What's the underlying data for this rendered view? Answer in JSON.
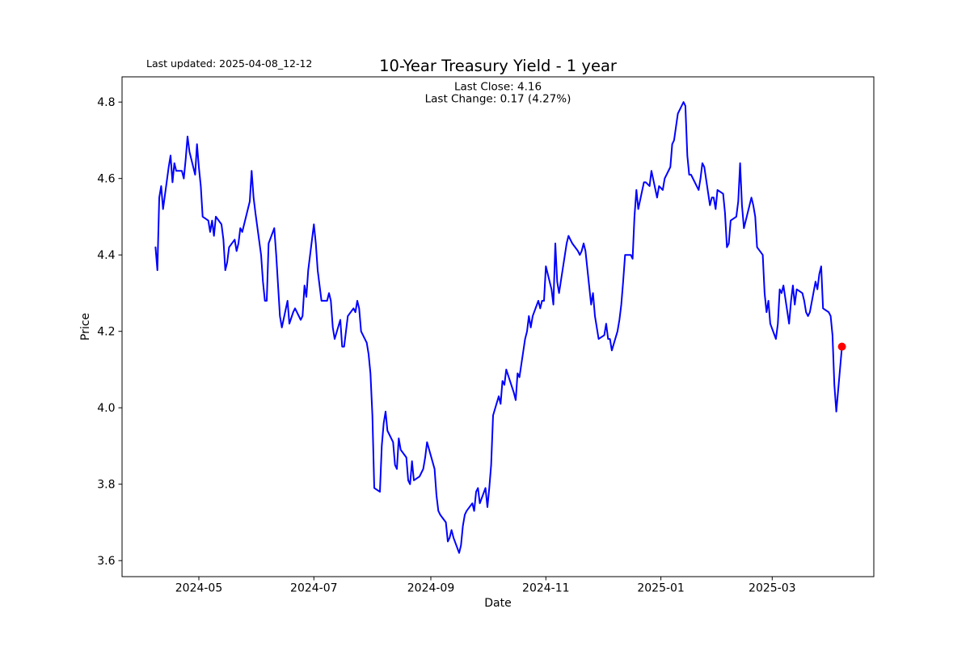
{
  "figure": {
    "last_updated": "Last updated: 2025-04-08_12-12"
  },
  "chart_data": {
    "type": "line",
    "title": "10-Year Treasury Yield - 1 year",
    "subtitle_lines": [
      "Last Close: 4.16",
      "Last Change: 0.17 (4.27%)"
    ],
    "xlabel": "Date",
    "ylabel": "Price",
    "legend": "none",
    "grid": false,
    "line_color": "#0000ff",
    "marker_color": "#ff0000",
    "last_close": 4.16,
    "last_change": 0.17,
    "last_change_pct": "4.27%",
    "x0": "2024-04-08",
    "x_range_days": [
      -17.73,
      380.9
    ],
    "y_range": [
      3.558,
      4.866
    ],
    "y_ticks": [
      3.6,
      3.8,
      4.0,
      4.2,
      4.4,
      4.6,
      4.8
    ],
    "x_ticks": [
      {
        "label": "2024-05",
        "date": "2024-05-01"
      },
      {
        "label": "2024-07",
        "date": "2024-07-01"
      },
      {
        "label": "2024-09",
        "date": "2024-09-01"
      },
      {
        "label": "2024-11",
        "date": "2024-11-01"
      },
      {
        "label": "2025-01",
        "date": "2025-01-01"
      },
      {
        "label": "2025-03",
        "date": "2025-03-01"
      }
    ],
    "dates": [
      "2024-04-08",
      "2024-04-09",
      "2024-04-10",
      "2024-04-11",
      "2024-04-12",
      "2024-04-15",
      "2024-04-16",
      "2024-04-17",
      "2024-04-18",
      "2024-04-19",
      "2024-04-22",
      "2024-04-23",
      "2024-04-24",
      "2024-04-25",
      "2024-04-26",
      "2024-04-29",
      "2024-04-30",
      "2024-05-01",
      "2024-05-02",
      "2024-05-03",
      "2024-05-06",
      "2024-05-07",
      "2024-05-08",
      "2024-05-09",
      "2024-05-10",
      "2024-05-13",
      "2024-05-14",
      "2024-05-15",
      "2024-05-16",
      "2024-05-17",
      "2024-05-20",
      "2024-05-21",
      "2024-05-22",
      "2024-05-23",
      "2024-05-24",
      "2024-05-28",
      "2024-05-29",
      "2024-05-30",
      "2024-05-31",
      "2024-06-03",
      "2024-06-04",
      "2024-06-05",
      "2024-06-06",
      "2024-06-07",
      "2024-06-10",
      "2024-06-11",
      "2024-06-12",
      "2024-06-13",
      "2024-06-14",
      "2024-06-17",
      "2024-06-18",
      "2024-06-20",
      "2024-06-21",
      "2024-06-24",
      "2024-06-25",
      "2024-06-26",
      "2024-06-27",
      "2024-06-28",
      "2024-07-01",
      "2024-07-02",
      "2024-07-03",
      "2024-07-05",
      "2024-07-08",
      "2024-07-09",
      "2024-07-10",
      "2024-07-11",
      "2024-07-12",
      "2024-07-15",
      "2024-07-16",
      "2024-07-17",
      "2024-07-18",
      "2024-07-19",
      "2024-07-22",
      "2024-07-23",
      "2024-07-24",
      "2024-07-25",
      "2024-07-26",
      "2024-07-29",
      "2024-07-30",
      "2024-07-31",
      "2024-08-01",
      "2024-08-02",
      "2024-08-05",
      "2024-08-06",
      "2024-08-07",
      "2024-08-08",
      "2024-08-09",
      "2024-08-12",
      "2024-08-13",
      "2024-08-14",
      "2024-08-15",
      "2024-08-16",
      "2024-08-19",
      "2024-08-20",
      "2024-08-21",
      "2024-08-22",
      "2024-08-23",
      "2024-08-26",
      "2024-08-27",
      "2024-08-28",
      "2024-08-29",
      "2024-08-30",
      "2024-09-03",
      "2024-09-04",
      "2024-09-05",
      "2024-09-06",
      "2024-09-09",
      "2024-09-10",
      "2024-09-11",
      "2024-09-12",
      "2024-09-13",
      "2024-09-16",
      "2024-09-17",
      "2024-09-18",
      "2024-09-19",
      "2024-09-20",
      "2024-09-23",
      "2024-09-24",
      "2024-09-25",
      "2024-09-26",
      "2024-09-27",
      "2024-09-30",
      "2024-10-01",
      "2024-10-02",
      "2024-10-03",
      "2024-10-04",
      "2024-10-07",
      "2024-10-08",
      "2024-10-09",
      "2024-10-10",
      "2024-10-11",
      "2024-10-15",
      "2024-10-16",
      "2024-10-17",
      "2024-10-18",
      "2024-10-21",
      "2024-10-22",
      "2024-10-23",
      "2024-10-24",
      "2024-10-25",
      "2024-10-28",
      "2024-10-29",
      "2024-10-30",
      "2024-10-31",
      "2024-11-01",
      "2024-11-04",
      "2024-11-05",
      "2024-11-06",
      "2024-11-07",
      "2024-11-08",
      "2024-11-12",
      "2024-11-13",
      "2024-11-14",
      "2024-11-15",
      "2024-11-18",
      "2024-11-19",
      "2024-11-20",
      "2024-11-21",
      "2024-11-22",
      "2024-11-25",
      "2024-11-26",
      "2024-11-27",
      "2024-11-29",
      "2024-12-02",
      "2024-12-03",
      "2024-12-04",
      "2024-12-05",
      "2024-12-06",
      "2024-12-09",
      "2024-12-10",
      "2024-12-11",
      "2024-12-12",
      "2024-12-13",
      "2024-12-16",
      "2024-12-17",
      "2024-12-18",
      "2024-12-19",
      "2024-12-20",
      "2024-12-23",
      "2024-12-24",
      "2024-12-26",
      "2024-12-27",
      "2024-12-30",
      "2024-12-31",
      "2025-01-02",
      "2025-01-03",
      "2025-01-06",
      "2025-01-07",
      "2025-01-08",
      "2025-01-10",
      "2025-01-13",
      "2025-01-14",
      "2025-01-15",
      "2025-01-16",
      "2025-01-17",
      "2025-01-21",
      "2025-01-22",
      "2025-01-23",
      "2025-01-24",
      "2025-01-27",
      "2025-01-28",
      "2025-01-29",
      "2025-01-30",
      "2025-01-31",
      "2025-02-03",
      "2025-02-04",
      "2025-02-05",
      "2025-02-06",
      "2025-02-07",
      "2025-02-10",
      "2025-02-11",
      "2025-02-12",
      "2025-02-13",
      "2025-02-14",
      "2025-02-18",
      "2025-02-19",
      "2025-02-20",
      "2025-02-21",
      "2025-02-24",
      "2025-02-25",
      "2025-02-26",
      "2025-02-27",
      "2025-02-28",
      "2025-03-03",
      "2025-03-04",
      "2025-03-05",
      "2025-03-06",
      "2025-03-07",
      "2025-03-10",
      "2025-03-11",
      "2025-03-12",
      "2025-03-13",
      "2025-03-14",
      "2025-03-17",
      "2025-03-18",
      "2025-03-19",
      "2025-03-20",
      "2025-03-21",
      "2025-03-24",
      "2025-03-25",
      "2025-03-26",
      "2025-03-27",
      "2025-03-28",
      "2025-03-31",
      "2025-04-01",
      "2025-04-02",
      "2025-04-03",
      "2025-04-04",
      "2025-04-07"
    ],
    "values": [
      4.42,
      4.36,
      4.55,
      4.58,
      4.52,
      4.63,
      4.66,
      4.59,
      4.64,
      4.62,
      4.62,
      4.6,
      4.65,
      4.71,
      4.67,
      4.61,
      4.69,
      4.63,
      4.58,
      4.5,
      4.49,
      4.46,
      4.49,
      4.45,
      4.5,
      4.48,
      4.44,
      4.36,
      4.38,
      4.42,
      4.44,
      4.41,
      4.43,
      4.47,
      4.46,
      4.54,
      4.62,
      4.55,
      4.51,
      4.4,
      4.33,
      4.28,
      4.28,
      4.43,
      4.47,
      4.4,
      4.32,
      4.24,
      4.21,
      4.28,
      4.22,
      4.25,
      4.26,
      4.23,
      4.24,
      4.32,
      4.29,
      4.36,
      4.48,
      4.43,
      4.36,
      4.28,
      4.28,
      4.3,
      4.28,
      4.21,
      4.18,
      4.23,
      4.16,
      4.16,
      4.2,
      4.24,
      4.26,
      4.25,
      4.28,
      4.26,
      4.2,
      4.17,
      4.14,
      4.09,
      3.98,
      3.79,
      3.78,
      3.9,
      3.96,
      3.99,
      3.94,
      3.91,
      3.85,
      3.84,
      3.92,
      3.89,
      3.87,
      3.81,
      3.8,
      3.86,
      3.81,
      3.82,
      3.83,
      3.84,
      3.87,
      3.91,
      3.84,
      3.77,
      3.73,
      3.72,
      3.7,
      3.65,
      3.66,
      3.68,
      3.66,
      3.62,
      3.64,
      3.69,
      3.72,
      3.73,
      3.75,
      3.73,
      3.78,
      3.79,
      3.75,
      3.79,
      3.74,
      3.79,
      3.85,
      3.98,
      4.03,
      4.01,
      4.07,
      4.06,
      4.1,
      4.04,
      4.02,
      4.09,
      4.08,
      4.18,
      4.2,
      4.24,
      4.21,
      4.24,
      4.28,
      4.26,
      4.28,
      4.28,
      4.37,
      4.31,
      4.27,
      4.43,
      4.33,
      4.3,
      4.43,
      4.45,
      4.44,
      4.43,
      4.41,
      4.4,
      4.41,
      4.43,
      4.41,
      4.27,
      4.3,
      4.24,
      4.18,
      4.19,
      4.22,
      4.18,
      4.18,
      4.15,
      4.2,
      4.23,
      4.27,
      4.33,
      4.4,
      4.4,
      4.39,
      4.5,
      4.57,
      4.52,
      4.59,
      4.59,
      4.58,
      4.62,
      4.55,
      4.58,
      4.57,
      4.6,
      4.63,
      4.69,
      4.7,
      4.77,
      4.8,
      4.79,
      4.66,
      4.61,
      4.61,
      4.57,
      4.6,
      4.64,
      4.63,
      4.53,
      4.55,
      4.55,
      4.52,
      4.57,
      4.56,
      4.51,
      4.42,
      4.43,
      4.49,
      4.5,
      4.54,
      4.64,
      4.53,
      4.47,
      4.55,
      4.53,
      4.5,
      4.42,
      4.4,
      4.3,
      4.25,
      4.28,
      4.22,
      4.18,
      4.22,
      4.31,
      4.3,
      4.32,
      4.22,
      4.28,
      4.32,
      4.27,
      4.31,
      4.3,
      4.28,
      4.25,
      4.24,
      4.25,
      4.33,
      4.31,
      4.35,
      4.37,
      4.26,
      4.25,
      4.24,
      4.19,
      4.06,
      3.99,
      4.16
    ]
  }
}
